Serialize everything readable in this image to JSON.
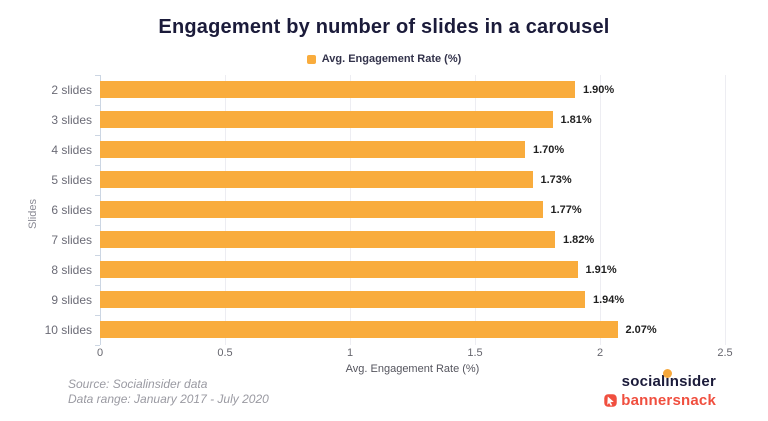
{
  "title": "Engagement by number of slides in a carousel",
  "legend": {
    "label": "Avg. Engagement Rate (%)",
    "swatch_color": "#f9ac3d"
  },
  "chart_data": {
    "type": "bar",
    "orientation": "horizontal",
    "title": "Engagement by number of slides in a carousel",
    "categories": [
      "2 slides",
      "3 slides",
      "4 slides",
      "5 slides",
      "6 slides",
      "7 slides",
      "8 slides",
      "9 slides",
      "10 slides"
    ],
    "values": [
      1.9,
      1.81,
      1.7,
      1.73,
      1.77,
      1.82,
      1.91,
      1.94,
      2.07
    ],
    "value_labels": [
      "1.90%",
      "1.81%",
      "1.70%",
      "1.73%",
      "1.77%",
      "1.82%",
      "1.91%",
      "1.94%",
      "2.07%"
    ],
    "xlabel": "Avg. Engagement Rate (%)",
    "ylabel": "Slides",
    "xlim": [
      0,
      2.5
    ],
    "xticks": [
      0,
      0.5,
      1,
      1.5,
      2,
      2.5
    ],
    "xtick_labels": [
      "0",
      "0.5",
      "1",
      "1.5",
      "2",
      "2.5"
    ],
    "grid": true,
    "legend_position": "top-center",
    "bar_color": "#f9ac3d"
  },
  "footer": {
    "source_line1": "Source: Socialinsider data",
    "source_line2": "Data range: January 2017 - July 2020",
    "socialinsider_part1": "social",
    "socialinsider_i": "ı",
    "socialinsider_part2": "nsider",
    "bannersnack_label": "bannersnack"
  }
}
